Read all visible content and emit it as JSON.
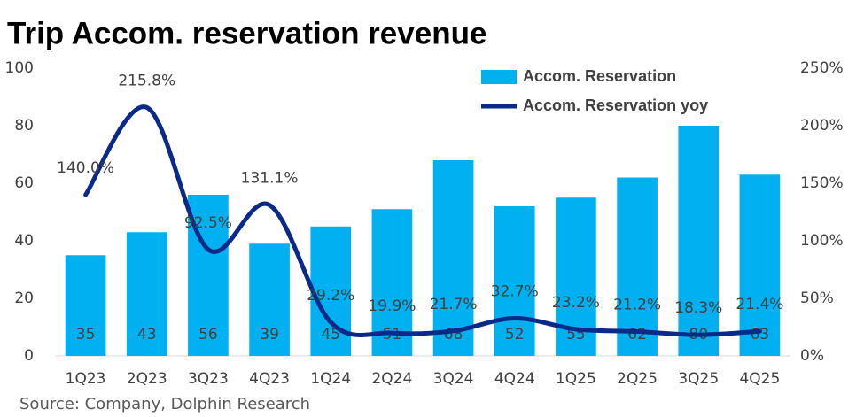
{
  "chart_data": {
    "type": "bar-line",
    "title": "Trip Accom. reservation revenue",
    "source": "Source: Company, Dolphin Research",
    "categories": [
      "1Q23",
      "2Q23",
      "3Q23",
      "4Q23",
      "1Q24",
      "2Q24",
      "3Q24",
      "4Q24",
      "1Q25",
      "2Q25",
      "3Q25",
      "4Q25"
    ],
    "series": [
      {
        "name": "Accom. Reservation",
        "type": "bar",
        "color": "#00b0f0",
        "values": [
          35,
          43,
          56,
          39,
          45,
          51,
          68,
          52,
          55,
          62,
          80,
          63
        ]
      },
      {
        "name": "Accom. Reservation yoy",
        "type": "line",
        "axis": "y2",
        "color": "#0a2a8a",
        "values": [
          140.0,
          215.8,
          92.5,
          131.1,
          29.2,
          19.9,
          21.7,
          32.7,
          23.2,
          21.2,
          18.3,
          21.4
        ],
        "value_labels": [
          "140.0%",
          "215.8%",
          "92.5%",
          "131.1%",
          "29.2%",
          "19.9%",
          "21.7%",
          "32.7%",
          "23.2%",
          "21.2%",
          "18.3%",
          "21.4%"
        ]
      }
    ],
    "ylim": [
      0,
      100
    ],
    "yticks": [
      0,
      20,
      40,
      60,
      80,
      100
    ],
    "y2lim": [
      0,
      250
    ],
    "y2ticks": [
      {
        "value": 0,
        "label": "0%"
      },
      {
        "value": 50,
        "label": "50%"
      },
      {
        "value": 100,
        "label": "100%"
      },
      {
        "value": 150,
        "label": "150%"
      },
      {
        "value": 200,
        "label": "200%"
      },
      {
        "value": 250,
        "label": "250%"
      }
    ],
    "legend": "top-right",
    "grid": false
  }
}
